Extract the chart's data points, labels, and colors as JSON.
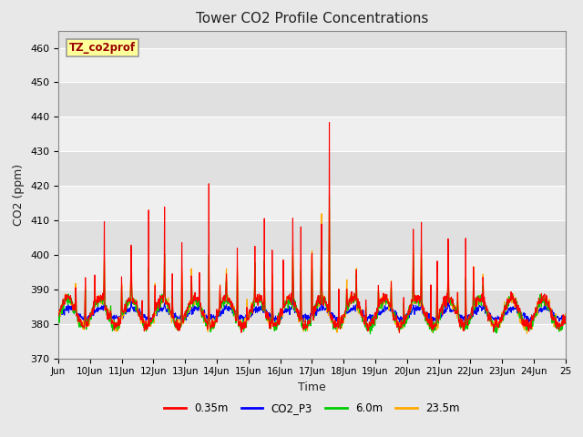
{
  "title": "Tower CO2 Profile Concentrations",
  "xlabel": "Time",
  "ylabel": "CO2 (ppm)",
  "ylim": [
    370,
    465
  ],
  "yticks": [
    370,
    380,
    390,
    400,
    410,
    420,
    430,
    440,
    450,
    460
  ],
  "xtick_labels": [
    "Jun",
    "10Jun",
    "11Jun",
    "12Jun",
    "13Jun",
    "14Jun",
    "15Jun",
    "16Jun",
    "17Jun",
    "18Jun",
    "19Jun",
    "20Jun",
    "21Jun",
    "22Jun",
    "23Jun",
    "24Jun",
    "25"
  ],
  "series_colors": [
    "#ff0000",
    "#0000ff",
    "#00cc00",
    "#ffaa00"
  ],
  "series_names": [
    "0.35m",
    "CO2_P3",
    "6.0m",
    "23.5m"
  ],
  "annotation_text": "TZ_co2prof",
  "annotation_bg": "#ffff99",
  "annotation_border": "#999999",
  "fig_bg": "#e8e8e8",
  "plot_bg": "#e0e0e0",
  "grid_color": "#ffffff",
  "line_width": 0.8,
  "n_points": 1500
}
